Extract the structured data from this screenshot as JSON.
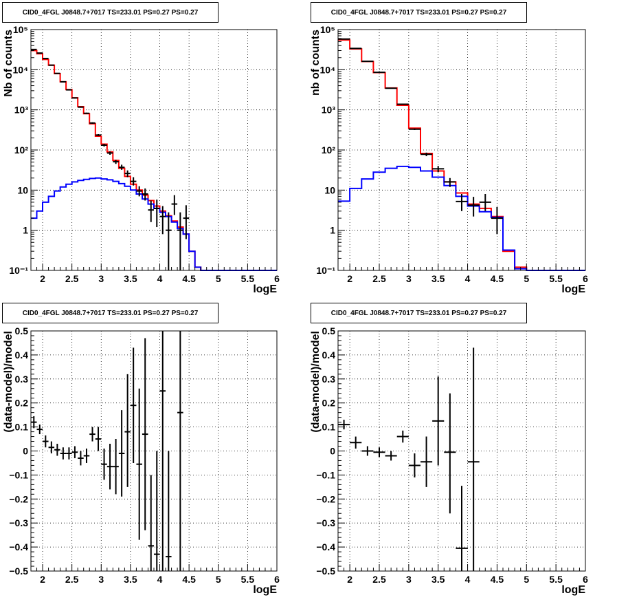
{
  "chart_data": [
    {
      "type": "line",
      "title": "CID0_4FGL J0848.7+7017 TS=233.01 PS=0.27 PS=0.27",
      "xlabel": "logE",
      "ylabel": "Nb of counts",
      "xlim": [
        1.8,
        6.0
      ],
      "ylim": [
        0.1,
        100000
      ],
      "yscale": "log",
      "grid": true,
      "bin_width": 0.1,
      "x_ticks": [
        "2",
        "2.5",
        "3",
        "3.5",
        "4",
        "4.5",
        "5",
        "5.5",
        "6"
      ],
      "y_ticks": [
        "10⁻¹",
        "1",
        "10",
        "10²",
        "10³",
        "10⁴",
        "10⁵"
      ],
      "series": [
        {
          "color": "#ff0000",
          "x_low": [
            1.8,
            1.9,
            2.0,
            2.1,
            2.2,
            2.3,
            2.4,
            2.5,
            2.6,
            2.7,
            2.8,
            2.9,
            3.0,
            3.1,
            3.2,
            3.3,
            3.4,
            3.5,
            3.6,
            3.7,
            3.8,
            3.9,
            4.0,
            4.1,
            4.2,
            4.3,
            4.4,
            4.5,
            4.6,
            4.7,
            4.8,
            4.9,
            5.0,
            5.1,
            5.2,
            5.3,
            5.4,
            5.5,
            5.6,
            5.7,
            5.8,
            5.9
          ],
          "values": [
            30000,
            25000,
            18000,
            13000,
            8000,
            5000,
            3200,
            2000,
            1200,
            800,
            450,
            220,
            140,
            90,
            55,
            35,
            22,
            14,
            10,
            7.5,
            5.5,
            4,
            3,
            2.3,
            1.7,
            1.2,
            0.8,
            0.3,
            0.12,
            0.1,
            0.1,
            0.1,
            0.1,
            0.1,
            0.1,
            0.1,
            0.1,
            0.1,
            0.1,
            0.1,
            0.1,
            0.1
          ]
        },
        {
          "color": "#0000ff",
          "x_low": [
            1.8,
            1.9,
            2.0,
            2.1,
            2.2,
            2.3,
            2.4,
            2.5,
            2.6,
            2.7,
            2.8,
            2.9,
            3.0,
            3.1,
            3.2,
            3.3,
            3.4,
            3.5,
            3.6,
            3.7,
            3.8,
            3.9,
            4.0,
            4.1,
            4.2,
            4.3,
            4.4,
            4.5,
            4.6,
            4.7,
            4.8,
            4.9,
            5.0,
            5.1,
            5.2,
            5.3,
            5.4,
            5.5,
            5.6,
            5.7,
            5.8,
            5.9
          ],
          "values": [
            2,
            3,
            5,
            7,
            9.5,
            12,
            14,
            16,
            17.5,
            18.5,
            19.5,
            20,
            19,
            18,
            16.5,
            14.5,
            12.5,
            10,
            8,
            6,
            4.5,
            3.5,
            2.8,
            2.2,
            1.6,
            1.1,
            0.8,
            0.3,
            0.12,
            0.1,
            0.1,
            0.1,
            0.1,
            0.1,
            0.1,
            0.1,
            0.1,
            0.1,
            0.1,
            0.1,
            0.1,
            0.1
          ]
        }
      ],
      "data_points": [
        {
          "x": 1.85,
          "y": 32000,
          "ylo": 31500,
          "yhi": 32500
        },
        {
          "x": 1.95,
          "y": 26000,
          "ylo": 25500,
          "yhi": 26500
        },
        {
          "x": 2.05,
          "y": 19000,
          "ylo": 18500,
          "yhi": 19500
        },
        {
          "x": 2.15,
          "y": 13000,
          "ylo": 12700,
          "yhi": 13300
        },
        {
          "x": 2.25,
          "y": 8100,
          "ylo": 7900,
          "yhi": 8300
        },
        {
          "x": 2.35,
          "y": 5000,
          "ylo": 4850,
          "yhi": 5150
        },
        {
          "x": 2.45,
          "y": 3150,
          "ylo": 3050,
          "yhi": 3250
        },
        {
          "x": 2.55,
          "y": 1980,
          "ylo": 1920,
          "yhi": 2040
        },
        {
          "x": 2.65,
          "y": 1170,
          "ylo": 1130,
          "yhi": 1210
        },
        {
          "x": 2.75,
          "y": 820,
          "ylo": 790,
          "yhi": 850
        },
        {
          "x": 2.85,
          "y": 470,
          "ylo": 450,
          "yhi": 490
        },
        {
          "x": 2.95,
          "y": 235,
          "ylo": 222,
          "yhi": 248
        },
        {
          "x": 3.05,
          "y": 132,
          "ylo": 122,
          "yhi": 142
        },
        {
          "x": 3.15,
          "y": 84,
          "ylo": 76,
          "yhi": 92
        },
        {
          "x": 3.25,
          "y": 51,
          "ylo": 45,
          "yhi": 57
        },
        {
          "x": 3.35,
          "y": 37,
          "ylo": 32,
          "yhi": 43
        },
        {
          "x": 3.45,
          "y": 26,
          "ylo": 21,
          "yhi": 31
        },
        {
          "x": 3.55,
          "y": 16.5,
          "ylo": 13,
          "yhi": 21
        },
        {
          "x": 3.65,
          "y": 9.5,
          "ylo": 7,
          "yhi": 12.5
        },
        {
          "x": 3.75,
          "y": 8,
          "ylo": 5.5,
          "yhi": 11
        },
        {
          "x": 3.85,
          "y": 3.2,
          "ylo": 1.6,
          "yhi": 5.5
        },
        {
          "x": 3.95,
          "y": 3.5,
          "ylo": 1.2,
          "yhi": 5.8
        },
        {
          "x": 4.05,
          "y": 2.2,
          "ylo": 0.8,
          "yhi": 4
        },
        {
          "x": 4.15,
          "y": 1.0,
          "ylo": 0.1,
          "yhi": 2.8
        },
        {
          "x": 4.25,
          "y": 4.5,
          "ylo": 2.4,
          "yhi": 7.5
        },
        {
          "x": 4.35,
          "y": 1.0,
          "ylo": 0.1,
          "yhi": 2.8
        },
        {
          "x": 4.45,
          "y": 2.0,
          "ylo": 0.6,
          "yhi": 4.2
        }
      ]
    },
    {
      "type": "line",
      "title": "CID0_4FGL J0848.7+7017 TS=233.01 PS=0.27 PS=0.27",
      "xlabel": "logE",
      "ylabel": "nb of counts",
      "xlim": [
        1.8,
        6.0
      ],
      "ylim": [
        0.1,
        100000
      ],
      "yscale": "log",
      "grid": true,
      "bin_width": 0.2,
      "x_ticks": [
        "2",
        "2.5",
        "3",
        "3.5",
        "4",
        "4.5",
        "5",
        "5.5",
        "6"
      ],
      "y_ticks": [
        "10⁻¹",
        "1",
        "10",
        "10²",
        "10³",
        "10⁴",
        "10⁵"
      ],
      "series": [
        {
          "color": "#ff0000",
          "x_low": [
            1.8,
            2.0,
            2.2,
            2.4,
            2.6,
            2.8,
            3.0,
            3.2,
            3.4,
            3.6,
            3.8,
            4.0,
            4.2,
            4.4,
            4.6,
            4.8,
            5.0,
            5.2,
            5.4,
            5.6,
            5.8
          ],
          "values": [
            55000,
            33000,
            16000,
            8500,
            3500,
            1300,
            350,
            82,
            30,
            16,
            8.5,
            4.5,
            3.5,
            2.2,
            0.3,
            0.12,
            0.1,
            0.1,
            0.1,
            0.1,
            0.1
          ]
        },
        {
          "color": "#0000ff",
          "x_low": [
            1.8,
            2.0,
            2.2,
            2.4,
            2.6,
            2.8,
            3.0,
            3.2,
            3.4,
            3.6,
            3.8,
            4.0,
            4.2,
            4.4,
            4.6,
            4.8,
            5.0,
            5.2,
            5.4,
            5.6,
            5.8
          ],
          "values": [
            5.3,
            11,
            19,
            28,
            35,
            39,
            37,
            30,
            21,
            13,
            7,
            4,
            2.9,
            2.1,
            0.32,
            0.11,
            0.1,
            0.1,
            0.1,
            0.1,
            0.1
          ]
        }
      ],
      "data_points": [
        {
          "x": 1.9,
          "y": 58000,
          "ylo": 57300,
          "yhi": 58700
        },
        {
          "x": 2.1,
          "y": 34000,
          "ylo": 33500,
          "yhi": 34500
        },
        {
          "x": 2.3,
          "y": 16200,
          "ylo": 15900,
          "yhi": 16500
        },
        {
          "x": 2.5,
          "y": 8600,
          "ylo": 8400,
          "yhi": 8800
        },
        {
          "x": 2.7,
          "y": 3450,
          "ylo": 3380,
          "yhi": 3520
        },
        {
          "x": 2.9,
          "y": 1380,
          "ylo": 1340,
          "yhi": 1420
        },
        {
          "x": 3.1,
          "y": 330,
          "ylo": 315,
          "yhi": 345
        },
        {
          "x": 3.3,
          "y": 78,
          "ylo": 70,
          "yhi": 86
        },
        {
          "x": 3.5,
          "y": 34,
          "ylo": 28,
          "yhi": 40
        },
        {
          "x": 3.7,
          "y": 16,
          "ylo": 12,
          "yhi": 20
        },
        {
          "x": 3.9,
          "y": 5.2,
          "ylo": 3,
          "yhi": 8
        },
        {
          "x": 4.1,
          "y": 4.2,
          "ylo": 2.2,
          "yhi": 6.8
        },
        {
          "x": 4.3,
          "y": 5.0,
          "ylo": 3,
          "yhi": 8
        },
        {
          "x": 4.5,
          "y": 2.0,
          "ylo": 0.8,
          "yhi": 3.8
        }
      ]
    },
    {
      "type": "scatter",
      "title": "CID0_4FGL J0848.7+7017 TS=233.01 PS=0.27 PS=0.27",
      "xlabel": "logE",
      "ylabel": "(data-model)/model",
      "xlim": [
        1.8,
        6.0
      ],
      "ylim": [
        -0.5,
        0.5
      ],
      "grid": true,
      "bin_width": 0.1,
      "x_ticks": [
        "2",
        "2.5",
        "3",
        "3.5",
        "4",
        "4.5",
        "5",
        "5.5",
        "6"
      ],
      "y_ticks": [
        "−0.5",
        "−0.4",
        "−0.3",
        "−0.2",
        "−0.1",
        "0",
        "0.1",
        "0.2",
        "0.3",
        "0.4",
        "0.5"
      ],
      "data_points": [
        {
          "x": 1.85,
          "y": 0.12,
          "ylo": 0.095,
          "yhi": 0.145
        },
        {
          "x": 1.95,
          "y": 0.09,
          "ylo": 0.07,
          "yhi": 0.11
        },
        {
          "x": 2.05,
          "y": 0.04,
          "ylo": 0.015,
          "yhi": 0.065
        },
        {
          "x": 2.15,
          "y": 0.015,
          "ylo": -0.01,
          "yhi": 0.04
        },
        {
          "x": 2.25,
          "y": 0.005,
          "ylo": -0.02,
          "yhi": 0.03
        },
        {
          "x": 2.35,
          "y": -0.01,
          "ylo": -0.035,
          "yhi": 0.015
        },
        {
          "x": 2.45,
          "y": -0.01,
          "ylo": -0.035,
          "yhi": 0.015
        },
        {
          "x": 2.55,
          "y": -0.005,
          "ylo": -0.03,
          "yhi": 0.02
        },
        {
          "x": 2.65,
          "y": -0.03,
          "ylo": -0.06,
          "yhi": 0.0
        },
        {
          "x": 2.75,
          "y": -0.02,
          "ylo": -0.05,
          "yhi": 0.01
        },
        {
          "x": 2.85,
          "y": 0.07,
          "ylo": 0.04,
          "yhi": 0.1
        },
        {
          "x": 2.95,
          "y": 0.05,
          "ylo": 0.0,
          "yhi": 0.1
        },
        {
          "x": 3.05,
          "y": -0.055,
          "ylo": -0.12,
          "yhi": 0.01
        },
        {
          "x": 3.15,
          "y": -0.065,
          "ylo": -0.16,
          "yhi": 0.03
        },
        {
          "x": 3.25,
          "y": -0.065,
          "ylo": -0.18,
          "yhi": 0.05
        },
        {
          "x": 3.35,
          "y": -0.01,
          "ylo": -0.19,
          "yhi": 0.17
        },
        {
          "x": 3.45,
          "y": 0.08,
          "ylo": -0.15,
          "yhi": 0.32
        },
        {
          "x": 3.55,
          "y": 0.19,
          "ylo": -0.05,
          "yhi": 0.43
        },
        {
          "x": 3.65,
          "y": -0.055,
          "ylo": -0.37,
          "yhi": 0.26
        },
        {
          "x": 3.75,
          "y": 0.07,
          "ylo": -0.33,
          "yhi": 0.47
        },
        {
          "x": 3.85,
          "y": -0.395,
          "ylo": -0.5,
          "yhi": -0.1
        },
        {
          "x": 3.95,
          "y": -0.43,
          "ylo": -0.5,
          "yhi": 0.0
        },
        {
          "x": 4.05,
          "y": 0.25,
          "ylo": -0.5,
          "yhi": 0.5
        },
        {
          "x": 4.15,
          "y": -0.44,
          "ylo": -0.5,
          "yhi": 0.0
        },
        {
          "x": 4.35,
          "y": 0.16,
          "ylo": -0.5,
          "yhi": 0.5
        }
      ]
    },
    {
      "type": "scatter",
      "title": "CID0_4FGL J0848.7+7017 TS=233.01 PS=0.27 PS=0.27",
      "xlabel": "logE",
      "ylabel": "(data-model)/model",
      "xlim": [
        1.8,
        6.0
      ],
      "ylim": [
        -0.5,
        0.5
      ],
      "grid": true,
      "bin_width": 0.2,
      "x_ticks": [
        "2",
        "2.5",
        "3",
        "3.5",
        "4",
        "4.5",
        "5",
        "5.5",
        "6"
      ],
      "y_ticks": [
        "−0.5",
        "−0.4",
        "−0.3",
        "−0.2",
        "−0.1",
        "0",
        "0.1",
        "0.2",
        "0.3",
        "0.4",
        "0.5"
      ],
      "data_points": [
        {
          "x": 1.9,
          "y": 0.11,
          "ylo": 0.09,
          "yhi": 0.13
        },
        {
          "x": 2.1,
          "y": 0.035,
          "ylo": 0.01,
          "yhi": 0.06
        },
        {
          "x": 2.3,
          "y": 0.0,
          "ylo": -0.02,
          "yhi": 0.02
        },
        {
          "x": 2.5,
          "y": -0.005,
          "ylo": -0.025,
          "yhi": 0.015
        },
        {
          "x": 2.7,
          "y": -0.02,
          "ylo": -0.04,
          "yhi": 0.0
        },
        {
          "x": 2.9,
          "y": 0.06,
          "ylo": 0.035,
          "yhi": 0.085
        },
        {
          "x": 3.1,
          "y": -0.06,
          "ylo": -0.11,
          "yhi": -0.01
        },
        {
          "x": 3.3,
          "y": -0.045,
          "ylo": -0.15,
          "yhi": 0.06
        },
        {
          "x": 3.5,
          "y": 0.125,
          "ylo": -0.06,
          "yhi": 0.31
        },
        {
          "x": 3.7,
          "y": -0.005,
          "ylo": -0.26,
          "yhi": 0.24
        },
        {
          "x": 3.9,
          "y": -0.405,
          "ylo": -0.5,
          "yhi": -0.145
        },
        {
          "x": 4.1,
          "y": -0.045,
          "ylo": -0.5,
          "yhi": 0.43
        }
      ]
    }
  ]
}
